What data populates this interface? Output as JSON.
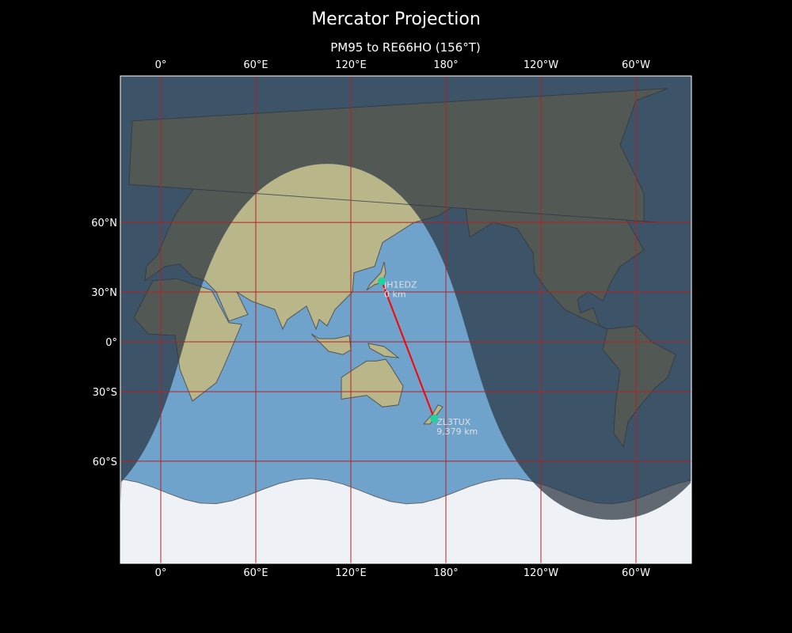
{
  "figure": {
    "title": "Mercator Projection",
    "subtitle": "PM95 to RE66HO (156°T)"
  },
  "axes": {
    "x_ticks": [
      {
        "lon": 0,
        "label": "0°"
      },
      {
        "lon": 60,
        "label": "60°E"
      },
      {
        "lon": 120,
        "label": "120°E"
      },
      {
        "lon": 180,
        "label": "180°"
      },
      {
        "lon": 240,
        "label": "120°W"
      },
      {
        "lon": 300,
        "label": "60°W"
      }
    ],
    "y_ticks": [
      {
        "lat": 60,
        "label": "60°N"
      },
      {
        "lat": 30,
        "label": "30°N"
      },
      {
        "lat": 0,
        "label": "0°"
      },
      {
        "lat": -30,
        "label": "30°S"
      },
      {
        "lat": -60,
        "label": "60°S"
      }
    ],
    "extent": {
      "lon": [
        -25.5,
        335
      ],
      "lat": [
        -80,
        84
      ]
    }
  },
  "path": {
    "color": "#ff0000",
    "points": [
      {
        "name": "JH1EDZ",
        "distance": "0 km",
        "lon": 139.5,
        "lat": 35.7
      },
      {
        "name": "ZL3TUX",
        "distance": "9,379 km",
        "lon": 172.6,
        "lat": -43.5
      }
    ],
    "marker_color": "#1fd3a0"
  },
  "colors": {
    "ocean_day": "#6fa3cc",
    "night_overlay": "#2a3440",
    "grid": "#b22222",
    "land": "#b9b78a"
  }
}
